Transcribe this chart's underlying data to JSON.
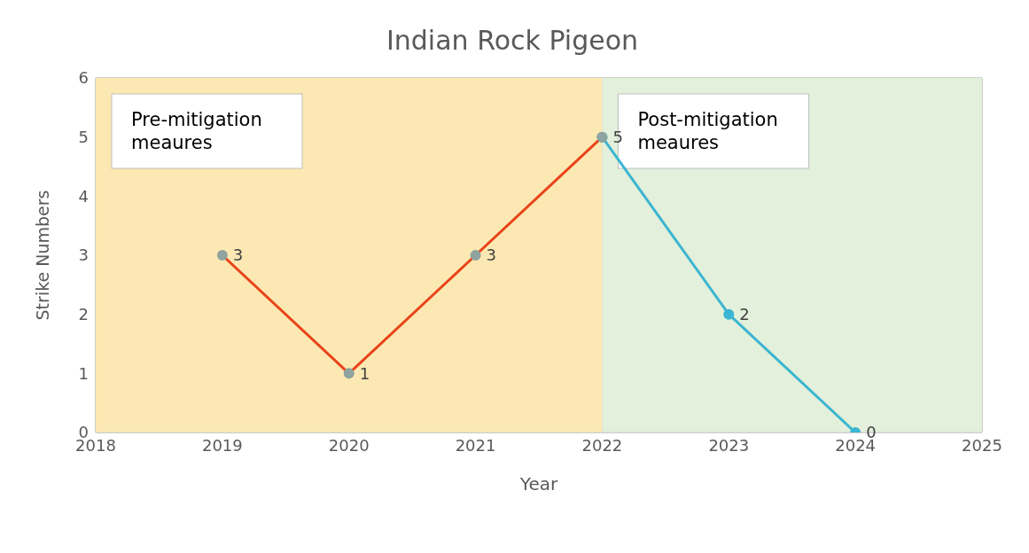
{
  "chart_data": {
    "type": "line",
    "title": "Indian Rock Pigeon",
    "xlabel": "Year",
    "ylabel": "Strike Numbers",
    "xlim": [
      2018,
      2025
    ],
    "xticks": [
      2018,
      2019,
      2020,
      2021,
      2022,
      2023,
      2024,
      2025
    ],
    "ylim": [
      0,
      6
    ],
    "yticks": [
      0,
      1,
      2,
      3,
      4,
      5,
      6
    ],
    "grid": true,
    "marker": "circle",
    "line_style": "solid",
    "data_labels": true,
    "series": [
      {
        "x": [
          2019,
          2020,
          2021,
          2022
        ],
        "values": [
          3,
          1,
          3,
          5
        ],
        "color": "#e8441a"
      },
      {
        "x": [
          2022,
          2023,
          2024
        ],
        "values": [
          5,
          2,
          0
        ],
        "value_labels": [
          null,
          "2",
          "0"
        ],
        "color": "#3bb5d1"
      }
    ],
    "bands": [
      {
        "axis": "x",
        "from": 2018,
        "to": 2022,
        "label": "Pre-mitigation meaures",
        "color": "#fce8b3"
      },
      {
        "axis": "x",
        "from": 2022,
        "to": 2025,
        "label": "Post-mitigation meaures",
        "color": "#e3f0db"
      }
    ]
  }
}
